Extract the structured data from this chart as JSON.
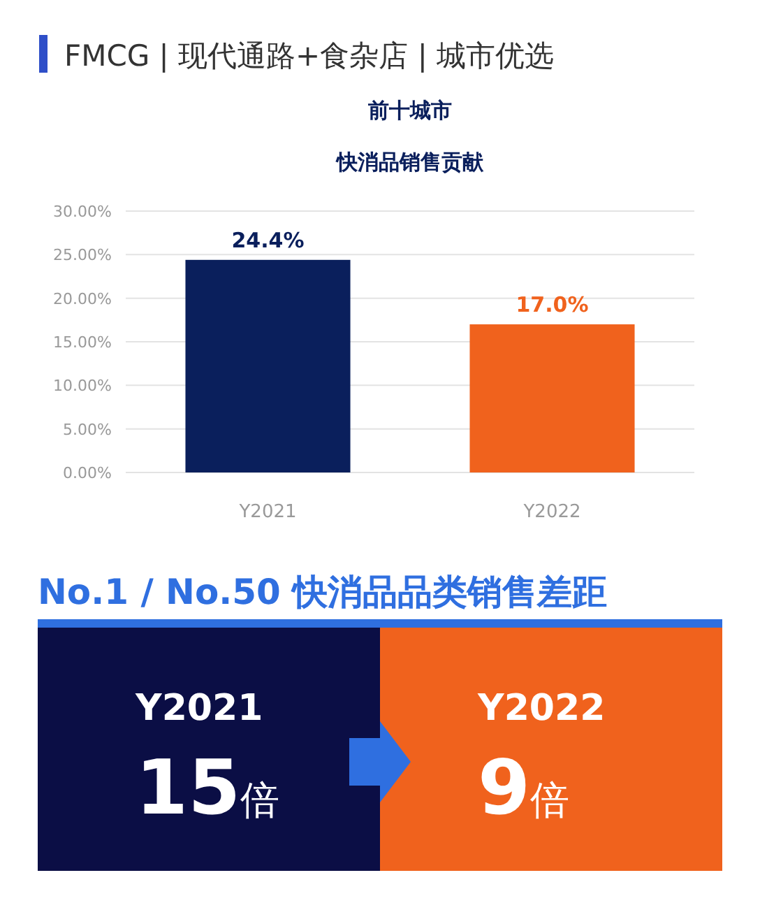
{
  "chart_data": [
    {
      "type": "bar",
      "title": "前十城市",
      "subtitle": "快消品销售贡献",
      "annotations": [
        "FMCG | 现代通路+食杂店 | 城市优选"
      ],
      "categories": [
        "Y2021",
        "Y2022"
      ],
      "values": [
        24.4,
        17.0
      ],
      "colors": [
        "#0a1f5c",
        "#f0621d"
      ],
      "value_labels": [
        "24.4%",
        "17.0%"
      ],
      "ylim": [
        0,
        30
      ],
      "yticks": [
        {
          "value": 0,
          "label": "0.00%"
        },
        {
          "value": 5,
          "label": "5.00%"
        },
        {
          "value": 10,
          "label": "10.00%"
        },
        {
          "value": 15,
          "label": "15.00%"
        },
        {
          "value": 20,
          "label": "20.00%"
        },
        {
          "value": 25,
          "label": "25.00%"
        },
        {
          "value": 30,
          "label": "30.00%"
        }
      ],
      "grid": "y"
    },
    {
      "type": "other",
      "title": "No.1 / No.50 快消品品类销售差距",
      "categories": [
        "Y2021",
        "Y2022"
      ],
      "values": [
        15,
        9
      ],
      "value_labels": [
        "15倍",
        "9倍"
      ],
      "colors": [
        "#0b0e45",
        "#f0621d"
      ]
    }
  ]
}
